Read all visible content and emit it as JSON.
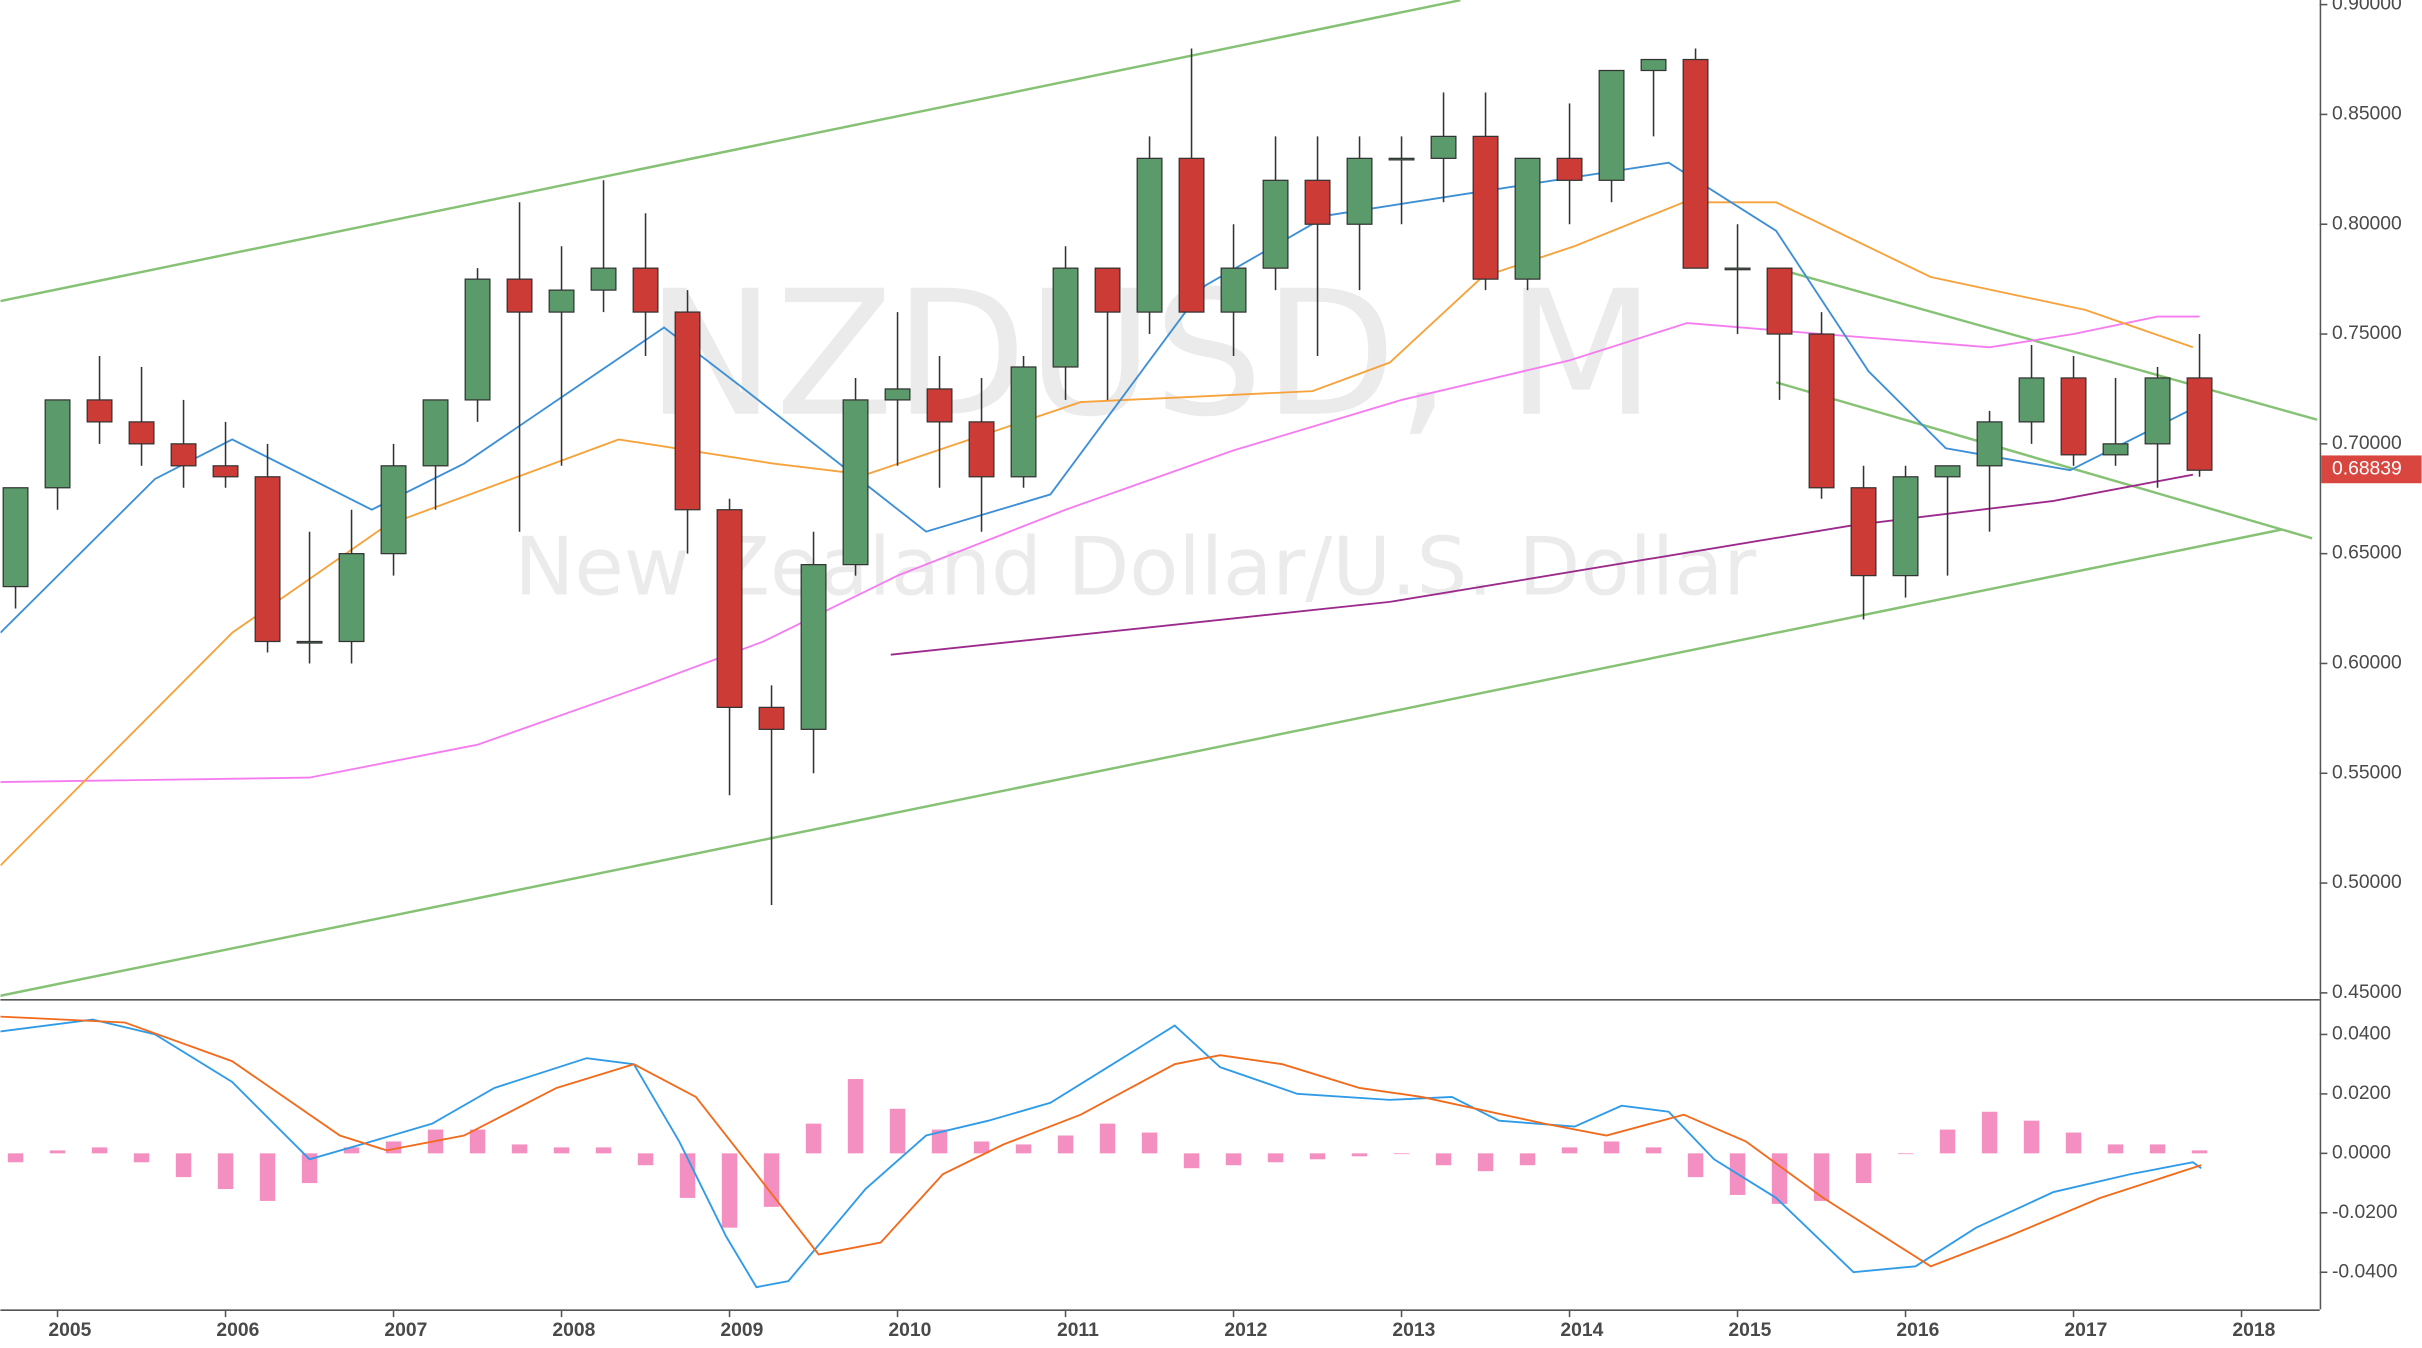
{
  "chart_data": [
    {
      "type": "candlestick",
      "title": "NZDUSD, M",
      "subtitle": "New Zealand Dollar/U.S. Dollar",
      "x": [
        2004.75,
        2005,
        2005.25,
        2005.5,
        2005.75,
        2006,
        2006.25,
        2006.5,
        2006.75,
        2007,
        2007.25,
        2007.5,
        2007.75,
        2008,
        2008.25,
        2008.5,
        2008.75,
        2009,
        2009.25,
        2009.5,
        2009.75,
        2010,
        2010.25,
        2010.5,
        2010.75,
        2011,
        2011.25,
        2011.5,
        2011.75,
        2012,
        2012.25,
        2012.5,
        2012.75,
        2013,
        2013.25,
        2013.5,
        2013.75,
        2014,
        2014.25,
        2014.5,
        2014.75,
        2015,
        2015.25,
        2015.5,
        2015.75,
        2016,
        2016.25,
        2016.5,
        2016.75,
        2017,
        2017.25,
        2017.5,
        2017.75
      ],
      "open": [
        0.635,
        0.68,
        0.72,
        0.71,
        0.7,
        0.69,
        0.685,
        0.61,
        0.61,
        0.65,
        0.69,
        0.72,
        0.775,
        0.76,
        0.77,
        0.78,
        0.76,
        0.67,
        0.58,
        0.57,
        0.645,
        0.72,
        0.725,
        0.71,
        0.685,
        0.735,
        0.78,
        0.76,
        0.83,
        0.76,
        0.78,
        0.82,
        0.8,
        0.83,
        0.83,
        0.84,
        0.775,
        0.83,
        0.82,
        0.87,
        0.875,
        0.78,
        0.78,
        0.75,
        0.68,
        0.64,
        0.685,
        0.69,
        0.71,
        0.73,
        0.695,
        0.7,
        0.73
      ],
      "high": [
        0.68,
        0.72,
        0.74,
        0.735,
        0.72,
        0.71,
        0.7,
        0.66,
        0.67,
        0.7,
        0.72,
        0.78,
        0.81,
        0.79,
        0.82,
        0.805,
        0.77,
        0.675,
        0.59,
        0.66,
        0.73,
        0.76,
        0.74,
        0.73,
        0.74,
        0.79,
        0.78,
        0.84,
        0.88,
        0.8,
        0.84,
        0.84,
        0.84,
        0.84,
        0.86,
        0.86,
        0.83,
        0.855,
        0.87,
        0.875,
        0.88,
        0.8,
        0.78,
        0.76,
        0.69,
        0.69,
        0.69,
        0.715,
        0.745,
        0.74,
        0.73,
        0.735,
        0.75
      ],
      "low": [
        0.625,
        0.67,
        0.7,
        0.69,
        0.68,
        0.68,
        0.605,
        0.6,
        0.6,
        0.64,
        0.67,
        0.71,
        0.66,
        0.69,
        0.76,
        0.74,
        0.65,
        0.54,
        0.49,
        0.55,
        0.64,
        0.69,
        0.68,
        0.66,
        0.68,
        0.72,
        0.72,
        0.75,
        0.76,
        0.74,
        0.77,
        0.74,
        0.77,
        0.8,
        0.81,
        0.77,
        0.77,
        0.8,
        0.81,
        0.84,
        0.78,
        0.75,
        0.72,
        0.675,
        0.62,
        0.63,
        0.64,
        0.66,
        0.7,
        0.69,
        0.69,
        0.68,
        0.685
      ],
      "close": [
        0.68,
        0.72,
        0.71,
        0.7,
        0.69,
        0.685,
        0.61,
        0.61,
        0.65,
        0.69,
        0.72,
        0.775,
        0.76,
        0.77,
        0.78,
        0.76,
        0.67,
        0.58,
        0.57,
        0.645,
        0.72,
        0.725,
        0.71,
        0.685,
        0.735,
        0.78,
        0.76,
        0.83,
        0.76,
        0.78,
        0.82,
        0.8,
        0.83,
        0.83,
        0.84,
        0.775,
        0.83,
        0.82,
        0.87,
        0.875,
        0.78,
        0.78,
        0.75,
        0.68,
        0.64,
        0.685,
        0.69,
        0.71,
        0.73,
        0.695,
        0.7,
        0.73,
        0.688
      ],
      "up_color": "#5a9a6b",
      "down_color": "#cd3b36",
      "xlim": [
        2004.66,
        2018.465
      ],
      "ylim": [
        0.4472,
        0.9021
      ],
      "xticks": [
        2005,
        2006,
        2007,
        2008,
        2009,
        2010,
        2011,
        2012,
        2013,
        2014,
        2015,
        2016,
        2017,
        2018
      ],
      "yticks": [
        {
          "value": 0.45,
          "label": "0.45000"
        },
        {
          "value": 0.5,
          "label": "0.50000"
        },
        {
          "value": 0.55,
          "label": "0.55000"
        },
        {
          "value": 0.6,
          "label": "0.60000"
        },
        {
          "value": 0.65,
          "label": "0.65000"
        },
        {
          "value": 0.7,
          "label": "0.70000"
        },
        {
          "value": 0.75,
          "label": "0.75000"
        },
        {
          "value": 0.8,
          "label": "0.80000"
        },
        {
          "value": 0.85,
          "label": "0.85000"
        },
        {
          "value": 0.9,
          "label": "0.90000"
        }
      ],
      "last_price": 0.68839,
      "last_price_color": "#d9453f",
      "lines": [
        {
          "color": "#f57cf0",
          "x": [
            2004.66,
            2006.5,
            2007.5,
            2008.5,
            2009.2,
            2010,
            2011,
            2012,
            2013,
            2014,
            2014.7,
            2015.5,
            2016.5,
            2017,
            2017.5,
            2017.75
          ],
          "values": [
            0.546,
            0.548,
            0.563,
            0.59,
            0.61,
            0.64,
            0.67,
            0.697,
            0.72,
            0.738,
            0.755,
            0.75,
            0.744,
            0.75,
            0.758,
            0.758
          ]
        },
        {
          "color": "#f7a23a",
          "x": [
            2004.66,
            2006.04,
            2006.96,
            2008.34,
            2009.26,
            2009.81,
            2011.09,
            2012.47,
            2012.93,
            2013.48,
            2014.03,
            2014.68,
            2015.23,
            2016.15,
            2017.07,
            2017.71
          ],
          "values": [
            0.508,
            0.614,
            0.663,
            0.702,
            0.691,
            0.686,
            0.719,
            0.724,
            0.737,
            0.776,
            0.79,
            0.81,
            0.81,
            0.776,
            0.761,
            0.744
          ]
        },
        {
          "color": "#3d8fd6",
          "x": [
            2004.66,
            2005.58,
            2006.04,
            2006.87,
            2007.42,
            2008.61,
            2009.07,
            2010.17,
            2010.91,
            2011.83,
            2012.56,
            2013.4,
            2014.59,
            2015.23,
            2015.78,
            2016.24,
            2016.98,
            2017.71
          ],
          "values": [
            0.614,
            0.684,
            0.702,
            0.67,
            0.691,
            0.753,
            0.726,
            0.66,
            0.677,
            0.772,
            0.804,
            0.814,
            0.828,
            0.797,
            0.733,
            0.698,
            0.688,
            0.716
          ]
        },
        {
          "color": "#9c2a8c",
          "x": [
            2009.96,
            2012.93,
            2015.69,
            2016.88,
            2017.71
          ],
          "values": [
            0.604,
            0.628,
            0.663,
            0.674,
            0.686
          ]
        }
      ],
      "trend_lines": [
        {
          "color": "#86c275",
          "x": [
            2004.66,
            2013.35
          ],
          "values": [
            0.765,
            0.902
          ]
        },
        {
          "color": "#86c275",
          "x": [
            2004.66,
            2018.24
          ],
          "values": [
            0.4487,
            0.661
          ]
        },
        {
          "color": "#86c275",
          "x": [
            2015.27,
            2018.45
          ],
          "values": [
            0.779,
            0.711
          ]
        },
        {
          "color": "#86c275",
          "x": [
            2015.23,
            2018.42
          ],
          "values": [
            0.728,
            0.657
          ]
        }
      ]
    },
    {
      "type": "macd",
      "x": [
        2004.75,
        2005,
        2005.25,
        2005.5,
        2005.75,
        2006,
        2006.25,
        2006.5,
        2006.75,
        2007,
        2007.25,
        2007.5,
        2007.75,
        2008,
        2008.25,
        2008.5,
        2008.75,
        2009,
        2009.25,
        2009.5,
        2009.75,
        2010,
        2010.25,
        2010.5,
        2010.75,
        2011,
        2011.25,
        2011.5,
        2011.75,
        2012,
        2012.25,
        2012.5,
        2012.75,
        2013,
        2013.25,
        2013.5,
        2013.75,
        2014,
        2014.25,
        2014.5,
        2014.75,
        2015,
        2015.25,
        2015.5,
        2015.75,
        2016,
        2016.25,
        2016.5,
        2016.75,
        2017,
        2017.25,
        2017.5,
        2017.75
      ],
      "values": [
        -0.003,
        0.001,
        0.002,
        -0.003,
        -0.008,
        -0.012,
        -0.016,
        -0.01,
        0.002,
        0.004,
        0.008,
        0.008,
        0.003,
        0.002,
        0.002,
        -0.004,
        -0.015,
        -0.025,
        -0.018,
        0.01,
        0.025,
        0.015,
        0.008,
        0.004,
        0.003,
        0.006,
        0.01,
        0.007,
        -0.005,
        -0.004,
        -0.003,
        -0.002,
        -0.001,
        0.0,
        -0.004,
        -0.006,
        -0.004,
        0.002,
        0.004,
        0.002,
        -0.008,
        -0.014,
        -0.017,
        -0.016,
        -0.01,
        0.0,
        0.008,
        0.014,
        0.011,
        0.007,
        0.003,
        0.003,
        0.001
      ],
      "color": "#f48fc1",
      "xlim": [
        2004.66,
        2018.465
      ],
      "ylim": [
        -0.0525,
        0.0514
      ],
      "yticks": [
        {
          "value": -0.04,
          "label": "-0.0400"
        },
        {
          "value": -0.02,
          "label": "-0.0200"
        },
        {
          "value": 0,
          "label": "0.0000"
        },
        {
          "value": 0.02,
          "label": "0.0200"
        },
        {
          "value": 0.04,
          "label": "0.0400"
        }
      ],
      "lines": [
        {
          "color": "#2f9be8",
          "x": [
            2004.66,
            2005.21,
            2005.58,
            2006.04,
            2006.5,
            2006.87,
            2007.23,
            2007.6,
            2008.15,
            2008.43,
            2008.7,
            2008.98,
            2009.16,
            2009.35,
            2009.81,
            2010.17,
            2010.54,
            2010.91,
            2011.28,
            2011.65,
            2011.92,
            2012.38,
            2012.93,
            2013.3,
            2013.58,
            2014.03,
            2014.31,
            2014.59,
            2014.86,
            2015.23,
            2015.69,
            2016.06,
            2016.42,
            2016.88,
            2017.34,
            2017.71,
            2017.76
          ],
          "values": [
            0.041,
            0.045,
            0.04,
            0.024,
            -0.002,
            0.004,
            0.01,
            0.022,
            0.032,
            0.03,
            0.004,
            -0.028,
            -0.045,
            -0.043,
            -0.012,
            0.006,
            0.011,
            0.017,
            0.03,
            0.043,
            0.029,
            0.02,
            0.018,
            0.019,
            0.011,
            0.009,
            0.016,
            0.014,
            -0.002,
            -0.015,
            -0.04,
            -0.038,
            -0.025,
            -0.013,
            -0.007,
            -0.003,
            -0.005
          ]
        },
        {
          "color": "#f26a1b",
          "x": [
            2004.66,
            2005.4,
            2006.04,
            2006.68,
            2006.96,
            2007.42,
            2007.97,
            2008.43,
            2008.8,
            2009.16,
            2009.53,
            2009.9,
            2010.27,
            2010.63,
            2011.09,
            2011.65,
            2011.92,
            2012.29,
            2012.75,
            2013.12,
            2013.85,
            2014.22,
            2014.68,
            2015.05,
            2015.51,
            2016.15,
            2016.61,
            2017.16,
            2017.76
          ],
          "values": [
            0.046,
            0.044,
            0.031,
            0.006,
            0.001,
            0.006,
            0.022,
            0.03,
            0.019,
            -0.007,
            -0.034,
            -0.03,
            -0.007,
            0.003,
            0.013,
            0.03,
            0.033,
            0.03,
            0.022,
            0.019,
            0.01,
            0.006,
            0.013,
            0.004,
            -0.015,
            -0.038,
            -0.028,
            -0.015,
            -0.004
          ]
        }
      ]
    }
  ]
}
